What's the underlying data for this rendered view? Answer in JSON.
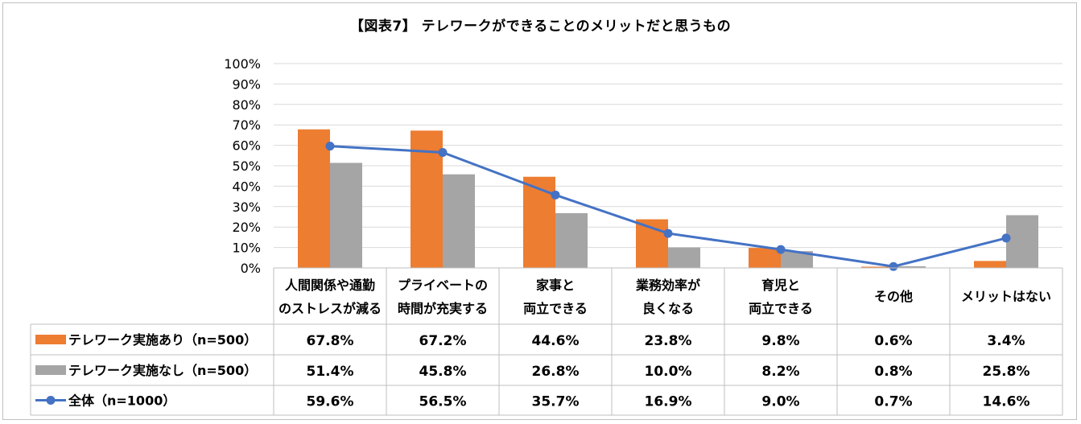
{
  "chart_data": {
    "type": "bar",
    "title": "【図表7】 テレワークができることのメリットだと思うもの",
    "categories": [
      [
        "人間関係や通勤",
        "のストレスが減る"
      ],
      [
        "プライベートの",
        "時間が充実する"
      ],
      [
        "家事と",
        "両立できる"
      ],
      [
        "業務効率が",
        "良くなる"
      ],
      [
        "育児と",
        "両立できる"
      ],
      [
        "その他"
      ],
      [
        "メリットはない"
      ]
    ],
    "ylim": [
      0,
      100
    ],
    "yticks": [
      "0%",
      "10%",
      "20%",
      "30%",
      "40%",
      "50%",
      "60%",
      "70%",
      "80%",
      "90%",
      "100%"
    ],
    "series": [
      {
        "name": "テレワーク実施あり（n=500）",
        "kind": "bar",
        "color": "#ED7D31",
        "values": [
          67.8,
          67.2,
          44.6,
          23.8,
          9.8,
          0.6,
          3.4
        ],
        "labels": [
          "67.8%",
          "67.2%",
          "44.6%",
          "23.8%",
          "9.8%",
          "0.6%",
          "3.4%"
        ]
      },
      {
        "name": "テレワーク実施なし（n=500）",
        "kind": "bar",
        "color": "#A5A5A5",
        "values": [
          51.4,
          45.8,
          26.8,
          10.0,
          8.2,
          0.8,
          25.8
        ],
        "labels": [
          "51.4%",
          "45.8%",
          "26.8%",
          "10.0%",
          "8.2%",
          "0.8%",
          "25.8%"
        ]
      },
      {
        "name": "全体（n=1000）",
        "kind": "line",
        "color": "#4472C4",
        "values": [
          59.6,
          56.5,
          35.7,
          16.9,
          9.0,
          0.7,
          14.6
        ],
        "labels": [
          "59.6%",
          "56.5%",
          "35.7%",
          "16.9%",
          "9.0%",
          "0.7%",
          "14.6%"
        ]
      }
    ],
    "grid": true,
    "legend": "data-table"
  }
}
